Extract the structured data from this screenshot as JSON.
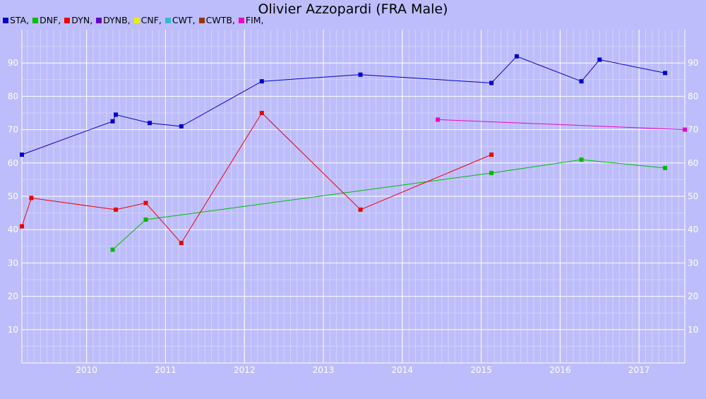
{
  "chart_data": {
    "type": "line",
    "title": "Olivier Azzopardi (FRA Male)",
    "xlabel": "",
    "ylabel": "",
    "xlim": [
      2009.18,
      2017.58
    ],
    "ylim": [
      0,
      100
    ],
    "x_ticks": [
      "2010",
      "2011",
      "2012",
      "2013",
      "2014",
      "2015",
      "2016",
      "2017"
    ],
    "y_ticks": [
      "10",
      "20",
      "30",
      "40",
      "50",
      "60",
      "70",
      "80",
      "90"
    ],
    "grid": true,
    "legend_position": "top-left",
    "legend": [
      {
        "label": "STA,",
        "color": "#0000cc"
      },
      {
        "label": "DNF,",
        "color": "#00bb00"
      },
      {
        "label": "DYN,",
        "color": "#ee0000"
      },
      {
        "label": "DYNB,",
        "color": "#6600cc"
      },
      {
        "label": "CNF,",
        "color": "#eeee00"
      },
      {
        "label": "CWT,",
        "color": "#33bbcc"
      },
      {
        "label": "CWTB,",
        "color": "#993300"
      },
      {
        "label": "FIM,",
        "color": "#ee00cc"
      }
    ],
    "series": [
      {
        "name": "STA",
        "color": "#0000cc",
        "points": [
          [
            2009.18,
            62.5
          ],
          [
            2010.33,
            72.5
          ],
          [
            2010.37,
            74.5
          ],
          [
            2010.8,
            72
          ],
          [
            2011.2,
            71
          ],
          [
            2012.22,
            84.5
          ],
          [
            2013.47,
            86.5
          ],
          [
            2015.13,
            84
          ],
          [
            2015.45,
            92
          ],
          [
            2016.27,
            84.5
          ],
          [
            2016.5,
            91
          ],
          [
            2017.33,
            87
          ]
        ]
      },
      {
        "name": "DNF",
        "color": "#00bb00",
        "points": [
          [
            2010.33,
            34
          ],
          [
            2010.75,
            43
          ],
          [
            2015.13,
            57
          ],
          [
            2016.27,
            61
          ],
          [
            2017.33,
            58.5
          ]
        ]
      },
      {
        "name": "DYN",
        "color": "#ee0000",
        "points": [
          [
            2009.18,
            41
          ],
          [
            2009.3,
            49.5
          ],
          [
            2010.37,
            46
          ],
          [
            2010.75,
            48
          ],
          [
            2011.2,
            36
          ],
          [
            2012.22,
            75
          ],
          [
            2013.47,
            46
          ],
          [
            2015.13,
            62.5
          ]
        ]
      },
      {
        "name": "FIM",
        "color": "#ee00cc",
        "points": [
          [
            2014.45,
            73
          ],
          [
            2017.58,
            70
          ]
        ]
      }
    ]
  }
}
